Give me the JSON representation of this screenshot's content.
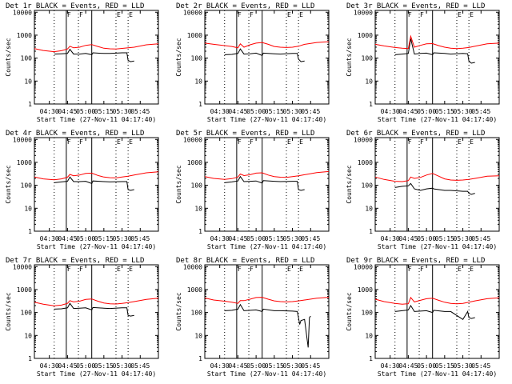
{
  "page": {
    "background": "#ffffff"
  },
  "colors": {
    "events": "#000000",
    "lld": "#ff0000",
    "axes": "#000000"
  },
  "shared": {
    "xlabel": "Start Time (27-Nov-11 04:17:40)",
    "ylabel": "Counts/sec",
    "x_ticks": [
      "04:30",
      "04:45",
      "05:00",
      "05:15",
      "05:30",
      "05:45"
    ],
    "x_tick_values": [
      30,
      45,
      60,
      75,
      90,
      105
    ],
    "y_ticks": [
      "1",
      "10",
      "100",
      "1000",
      "10000"
    ],
    "y_tick_values": [
      1,
      10,
      100,
      1000,
      10000
    ],
    "xlim": [
      17.67,
      120
    ],
    "ylim": [
      1,
      12000
    ],
    "y_scale": "log",
    "marker_labels": [
      "F",
      "F",
      "E",
      "E"
    ],
    "dotted_lines_x": [
      34,
      54,
      85,
      95
    ],
    "solid_lines_x": [
      44,
      65
    ]
  },
  "chart_data": [
    {
      "type": "line",
      "title": "Det 1r BLACK = Events, RED = LLD",
      "series": [
        {
          "name": "Events",
          "x": [
            34,
            40,
            45,
            47,
            50,
            55,
            60,
            65,
            66,
            75,
            80,
            90,
            94,
            95,
            97,
            100
          ],
          "y": [
            150,
            155,
            160,
            240,
            150,
            150,
            160,
            140,
            170,
            160,
            160,
            170,
            170,
            80,
            70,
            75
          ]
        },
        {
          "name": "LLD",
          "x": [
            17.67,
            25,
            34,
            40,
            45,
            47,
            50,
            55,
            60,
            65,
            70,
            75,
            80,
            85,
            90,
            95,
            100,
            110,
            120
          ],
          "y": [
            260,
            215,
            190,
            210,
            250,
            330,
            280,
            300,
            360,
            390,
            320,
            270,
            255,
            250,
            265,
            280,
            300,
            380,
            420
          ]
        }
      ]
    },
    {
      "type": "line",
      "title": "Det 2r BLACK = Events, RED = LLD",
      "series": [
        {
          "name": "Events",
          "x": [
            34,
            40,
            45,
            47,
            50,
            55,
            60,
            65,
            66,
            75,
            80,
            90,
            94,
            95,
            97,
            100
          ],
          "y": [
            140,
            145,
            160,
            250,
            150,
            155,
            165,
            130,
            165,
            155,
            150,
            160,
            160,
            90,
            70,
            75
          ]
        },
        {
          "name": "LLD",
          "x": [
            17.67,
            25,
            34,
            40,
            45,
            47,
            50,
            55,
            60,
            65,
            70,
            75,
            80,
            85,
            90,
            95,
            100,
            110,
            120
          ],
          "y": [
            450,
            400,
            350,
            320,
            280,
            420,
            300,
            380,
            450,
            480,
            400,
            320,
            300,
            290,
            300,
            330,
            400,
            480,
            520
          ]
        }
      ]
    },
    {
      "type": "line",
      "title": "Det 3r BLACK = Events, RED = LLD",
      "series": [
        {
          "name": "Events",
          "x": [
            34,
            40,
            45,
            47,
            50,
            55,
            60,
            65,
            66,
            75,
            80,
            90,
            94,
            95,
            97,
            100
          ],
          "y": [
            140,
            150,
            160,
            700,
            150,
            160,
            165,
            140,
            170,
            160,
            150,
            160,
            155,
            75,
            60,
            65
          ]
        },
        {
          "name": "LLD",
          "x": [
            17.67,
            25,
            34,
            40,
            45,
            47,
            50,
            55,
            60,
            65,
            70,
            75,
            80,
            85,
            90,
            95,
            100,
            110,
            120
          ],
          "y": [
            400,
            340,
            290,
            270,
            260,
            900,
            300,
            360,
            420,
            430,
            350,
            300,
            270,
            260,
            270,
            290,
            330,
            420,
            450
          ]
        }
      ]
    },
    {
      "type": "line",
      "title": "Det 4r BLACK = Events, RED = LLD",
      "series": [
        {
          "name": "Events",
          "x": [
            34,
            40,
            45,
            47,
            50,
            55,
            60,
            65,
            66,
            75,
            80,
            90,
            94,
            95,
            97,
            100
          ],
          "y": [
            130,
            140,
            150,
            230,
            145,
            145,
            150,
            120,
            155,
            145,
            140,
            145,
            145,
            65,
            60,
            65
          ]
        },
        {
          "name": "LLD",
          "x": [
            17.67,
            25,
            34,
            40,
            45,
            47,
            50,
            55,
            60,
            65,
            70,
            75,
            80,
            85,
            90,
            95,
            100,
            110,
            120
          ],
          "y": [
            230,
            190,
            175,
            190,
            225,
            300,
            260,
            280,
            330,
            340,
            270,
            230,
            215,
            210,
            230,
            250,
            280,
            350,
            390
          ]
        }
      ]
    },
    {
      "type": "line",
      "title": "Det 5r BLACK = Events, RED = LLD",
      "series": [
        {
          "name": "Events",
          "x": [
            34,
            40,
            45,
            47,
            50,
            55,
            60,
            65,
            66,
            75,
            80,
            90,
            94,
            95,
            97,
            100
          ],
          "y": [
            130,
            140,
            155,
            240,
            145,
            150,
            155,
            125,
            160,
            150,
            145,
            150,
            150,
            65,
            60,
            65
          ]
        },
        {
          "name": "LLD",
          "x": [
            17.67,
            25,
            34,
            40,
            45,
            47,
            50,
            55,
            60,
            65,
            70,
            75,
            80,
            85,
            90,
            95,
            100,
            110,
            120
          ],
          "y": [
            240,
            200,
            180,
            195,
            230,
            310,
            265,
            290,
            340,
            350,
            280,
            240,
            225,
            220,
            240,
            260,
            290,
            360,
            400
          ]
        }
      ]
    },
    {
      "type": "line",
      "title": "Det 6r BLACK = Events, RED = LLD",
      "series": [
        {
          "name": "Events",
          "x": [
            34,
            40,
            45,
            47,
            50,
            55,
            60,
            65,
            66,
            75,
            80,
            90,
            94,
            95,
            97,
            100
          ],
          "y": [
            80,
            90,
            95,
            120,
            70,
            60,
            70,
            75,
            70,
            60,
            60,
            55,
            55,
            45,
            40,
            45
          ]
        },
        {
          "name": "LLD",
          "x": [
            17.67,
            25,
            34,
            40,
            45,
            47,
            50,
            55,
            60,
            65,
            70,
            75,
            80,
            85,
            90,
            95,
            100,
            110,
            120
          ],
          "y": [
            230,
            180,
            150,
            145,
            160,
            230,
            200,
            220,
            280,
            330,
            250,
            190,
            170,
            165,
            170,
            180,
            200,
            250,
            260
          ]
        }
      ]
    },
    {
      "type": "line",
      "title": "Det 7r BLACK = Events, RED = LLD",
      "series": [
        {
          "name": "Events",
          "x": [
            34,
            40,
            45,
            47,
            50,
            55,
            60,
            65,
            66,
            75,
            80,
            90,
            94,
            95,
            97,
            100
          ],
          "y": [
            140,
            145,
            160,
            250,
            150,
            155,
            160,
            130,
            165,
            155,
            150,
            160,
            160,
            75,
            70,
            75
          ]
        },
        {
          "name": "LLD",
          "x": [
            17.67,
            25,
            34,
            40,
            45,
            47,
            50,
            55,
            60,
            65,
            70,
            75,
            80,
            85,
            90,
            95,
            100,
            110,
            120
          ],
          "y": [
            280,
            230,
            195,
            210,
            250,
            330,
            290,
            310,
            370,
            390,
            310,
            260,
            240,
            235,
            250,
            270,
            300,
            370,
            420
          ]
        }
      ]
    },
    {
      "type": "line",
      "title": "Det 8r BLACK = Events, RED = LLD",
      "series": [
        {
          "name": "Events",
          "x": [
            34,
            40,
            45,
            47,
            50,
            55,
            60,
            65,
            66,
            75,
            80,
            90,
            94,
            95,
            96,
            97,
            100,
            103,
            104,
            105
          ],
          "y": [
            120,
            125,
            140,
            220,
            120,
            125,
            130,
            110,
            140,
            120,
            120,
            115,
            110,
            60,
            30,
            45,
            50,
            3,
            60,
            70
          ]
        },
        {
          "name": "LLD",
          "x": [
            17.67,
            25,
            34,
            40,
            45,
            47,
            50,
            55,
            60,
            65,
            70,
            75,
            80,
            85,
            90,
            95,
            100,
            110,
            120
          ],
          "y": [
            430,
            350,
            310,
            280,
            250,
            330,
            330,
            380,
            450,
            460,
            380,
            320,
            300,
            290,
            300,
            320,
            350,
            420,
            460
          ]
        }
      ]
    },
    {
      "type": "line",
      "title": "Det 9r BLACK = Events, RED = LLD",
      "series": [
        {
          "name": "Events",
          "x": [
            34,
            40,
            45,
            47,
            50,
            55,
            60,
            65,
            66,
            75,
            80,
            90,
            94,
            95,
            97,
            100
          ],
          "y": [
            110,
            120,
            130,
            200,
            110,
            115,
            120,
            100,
            125,
            110,
            110,
            50,
            110,
            60,
            55,
            60
          ]
        },
        {
          "name": "LLD",
          "x": [
            17.67,
            25,
            34,
            40,
            45,
            47,
            50,
            55,
            60,
            65,
            70,
            75,
            80,
            85,
            90,
            95,
            100,
            110,
            120
          ],
          "y": [
            380,
            300,
            250,
            230,
            240,
            450,
            290,
            340,
            400,
            420,
            340,
            280,
            250,
            240,
            250,
            280,
            320,
            400,
            440
          ]
        }
      ]
    }
  ]
}
